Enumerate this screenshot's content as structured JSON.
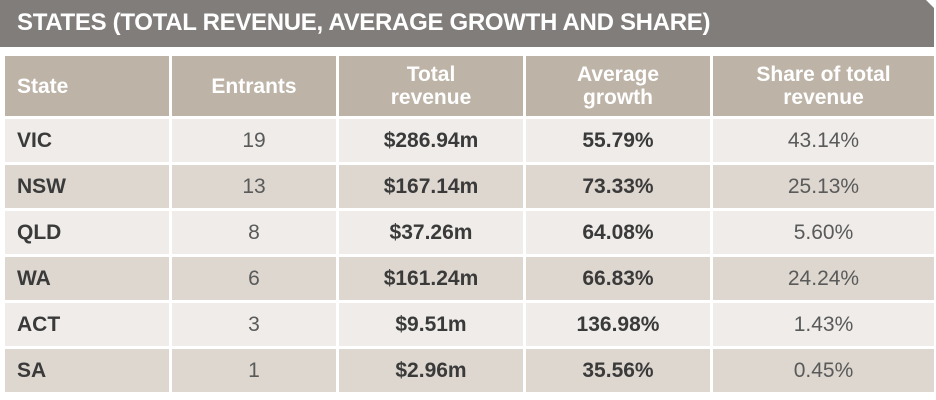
{
  "title": "STATES (TOTAL REVENUE, AVERAGE GROWTH  AND SHARE)",
  "colors": {
    "title_bar": "#807d7b",
    "header": "#bdb4a7",
    "row_light": "#efece9",
    "row_dark": "#ddd7cf"
  },
  "chart_data": {
    "type": "table",
    "title": "STATES (TOTAL REVENUE, AVERAGE GROWTH  AND SHARE)",
    "columns": [
      "State",
      "Entrants",
      "Total revenue",
      "Average growth",
      "Share of total revenue"
    ],
    "rows": [
      [
        "VIC",
        "19",
        "$286.94m",
        "55.79%",
        "43.14%"
      ],
      [
        "NSW",
        "13",
        "$167.14m",
        "73.33%",
        "25.13%"
      ],
      [
        "QLD",
        "8",
        "$37.26m",
        "64.08%",
        "5.60%"
      ],
      [
        "WA",
        "6",
        "$161.24m",
        "66.83%",
        "24.24%"
      ],
      [
        "ACT",
        "3",
        "$9.51m",
        "136.98%",
        "1.43%"
      ],
      [
        "SA",
        "1",
        "$2.96m",
        "35.56%",
        "0.45%"
      ]
    ]
  }
}
